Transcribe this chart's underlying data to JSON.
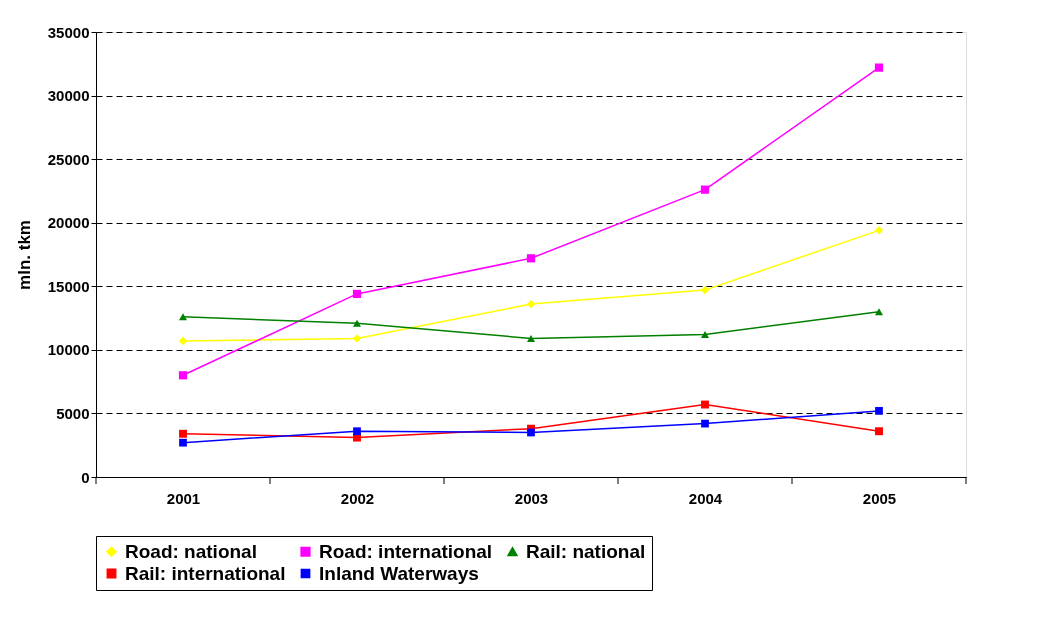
{
  "chart_data": {
    "type": "line",
    "ylabel": "mln. tkm",
    "categories": [
      "2001",
      "2002",
      "2003",
      "2004",
      "2005"
    ],
    "ylim": [
      0,
      35000
    ],
    "yticks": [
      0,
      5000,
      10000,
      15000,
      20000,
      25000,
      30000,
      35000
    ],
    "grid": "y",
    "legend": "bottom",
    "line_style": "solid",
    "series": [
      {
        "name": "Road: national",
        "color": "#ffff00",
        "marker": "diamond",
        "values": [
          10700,
          10900,
          13600,
          14700,
          19400
        ]
      },
      {
        "name": "Road: international",
        "color": "#ff00ff",
        "marker": "square",
        "values": [
          8000,
          14400,
          17200,
          22600,
          32200
        ]
      },
      {
        "name": "Rail: national",
        "color": "#008000",
        "marker": "triangle",
        "values": [
          12600,
          12100,
          10900,
          11200,
          13000
        ]
      },
      {
        "name": "Rail: international",
        "color": "#ff0000",
        "marker": "square",
        "values": [
          3400,
          3100,
          3800,
          5700,
          3600
        ]
      },
      {
        "name": "Inland Waterways",
        "color": "#0000ff",
        "marker": "square",
        "values": [
          2700,
          3600,
          3500,
          4200,
          5200
        ]
      }
    ]
  }
}
